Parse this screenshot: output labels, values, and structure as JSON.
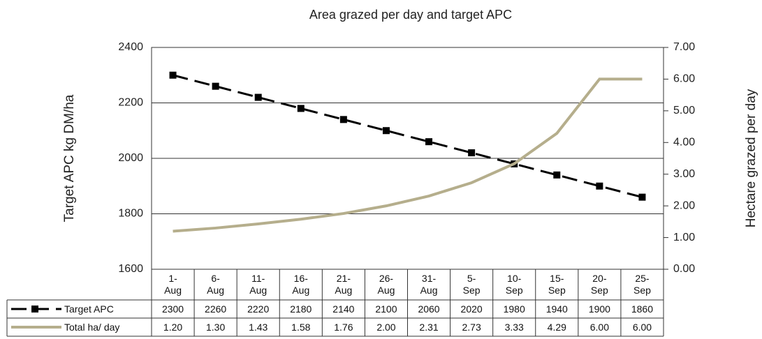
{
  "chart_data": {
    "type": "line",
    "title": "Area grazed per day and target APC",
    "y_label": "Target APC kg DM/ha",
    "y2_label": "Hectare grazed per day",
    "categories": [
      "1-\nAug",
      "6-\nAug",
      "11-\nAug",
      "16-\nAug",
      "21-\nAug",
      "26-\nAug",
      "31-\nAug",
      "5-\nSep",
      "10-\nSep",
      "15-\nSep",
      "20-\nSep",
      "25-\nSep"
    ],
    "series": [
      {
        "name": "Target APC",
        "color": "#000000",
        "axis": "y",
        "dashed": true,
        "markers": true,
        "values": [
          2300,
          2260,
          2220,
          2180,
          2140,
          2100,
          2060,
          2020,
          1980,
          1940,
          1900,
          1860
        ]
      },
      {
        "name": "Total ha/ day",
        "color": "#b5ae8c",
        "axis": "y2",
        "dashed": false,
        "markers": false,
        "values": [
          1.2,
          1.3,
          1.43,
          1.58,
          1.76,
          2,
          2.31,
          2.73,
          3.33,
          4.29,
          6,
          6
        ],
        "value_labels": [
          "1.20",
          "1.30",
          "1.43",
          "1.58",
          "1.76",
          "2.00",
          "2.31",
          "2.73",
          "3.33",
          "4.29",
          "6.00",
          "6.00"
        ]
      }
    ],
    "ylim": [
      1600,
      2400
    ],
    "yticks": [
      1600,
      1800,
      2000,
      2200,
      2400
    ],
    "y2lim": [
      0,
      7
    ],
    "y2ticks": [
      {
        "value": 0,
        "label": "0.00"
      },
      {
        "value": 1,
        "label": "1.00"
      },
      {
        "value": 2,
        "label": "2.00"
      },
      {
        "value": 3,
        "label": "3.00"
      },
      {
        "value": 4,
        "label": "4.00"
      },
      {
        "value": 5,
        "label": "5.00"
      },
      {
        "value": 6,
        "label": "6.00"
      },
      {
        "value": 7,
        "label": "7.00"
      }
    ],
    "grid": true
  }
}
